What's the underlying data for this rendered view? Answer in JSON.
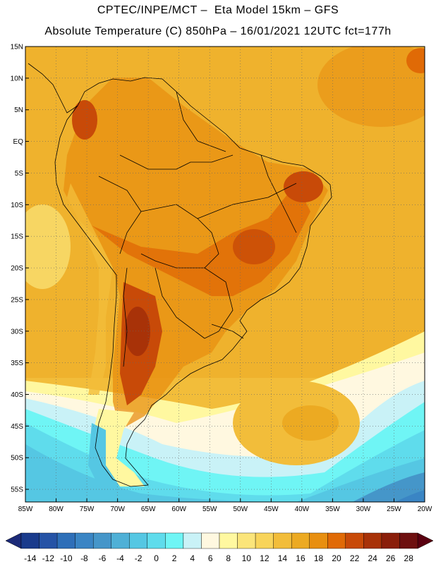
{
  "header": {
    "line1": "CPTEC/INPE/MCT –  Eta Model 15km – GFS",
    "line2": "Absolute Temperature (C) 850hPa – 16/01/2021 12UTC fct=177h"
  },
  "map": {
    "lat_labels": [
      "15N",
      "10N",
      "5N",
      "EQ",
      "5S",
      "10S",
      "15S",
      "20S",
      "25S",
      "30S",
      "35S",
      "40S",
      "45S",
      "50S",
      "55S"
    ],
    "lon_labels": [
      "85W",
      "80W",
      "75W",
      "70W",
      "65W",
      "60W",
      "55W",
      "50W",
      "45W",
      "40W",
      "35W",
      "30W",
      "25W",
      "20W"
    ],
    "lat_range": [
      15,
      -57
    ],
    "lon_range": [
      -85,
      -20
    ]
  },
  "colorbar": {
    "values": [
      "-14",
      "-12",
      "-10",
      "-8",
      "-6",
      "-4",
      "-2",
      "0",
      "2",
      "4",
      "6",
      "8",
      "10",
      "12",
      "14",
      "16",
      "18",
      "20",
      "22",
      "24",
      "26",
      "28"
    ],
    "colors": [
      "#1a3b8c",
      "#2553a6",
      "#2e6fb8",
      "#3a85c4",
      "#4596c9",
      "#4fb0d6",
      "#55c7e3",
      "#5fdcec",
      "#6ff5f5",
      "#c9f2f7",
      "#fff8e0",
      "#fff8a0",
      "#fbe57a",
      "#f8d45a",
      "#f2bd3a",
      "#ecaa22",
      "#e88f10",
      "#e06a06",
      "#c84a08",
      "#a83208",
      "#8a1e0a",
      "#6e1010"
    ],
    "under_color": "#1c2a78",
    "over_color": "#5a0010"
  }
}
